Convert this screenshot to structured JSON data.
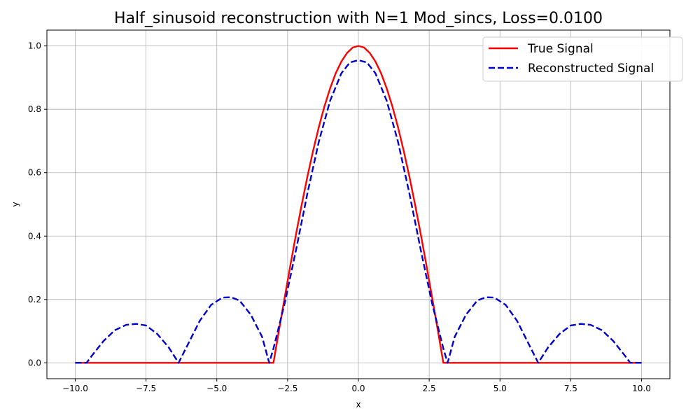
{
  "chart_data": {
    "type": "line",
    "title": "Half_sinusoid reconstruction with N=1 Mod_sincs, Loss=0.0100",
    "xlabel": "x",
    "ylabel": "y",
    "xlim": [
      -11,
      11
    ],
    "ylim": [
      -0.05,
      1.05
    ],
    "xticks": [
      -10,
      -7.5,
      -5,
      -2.5,
      0,
      2.5,
      5,
      7.5,
      10
    ],
    "xtick_labels": [
      "−10.0",
      "−7.5",
      "−5.0",
      "−2.5",
      "0.0",
      "2.5",
      "5.0",
      "7.5",
      "10.0"
    ],
    "yticks": [
      0,
      0.2,
      0.4,
      0.6,
      0.8,
      1.0
    ],
    "ytick_labels": [
      "0.0",
      "0.2",
      "0.4",
      "0.6",
      "0.8",
      "1.0"
    ],
    "grid": true,
    "legend_position": "top-right",
    "series": [
      {
        "name": "True Signal",
        "color": "#ff0000",
        "style": "solid",
        "x": [
          -10,
          -3.0,
          -2.8,
          -2.6,
          -2.4,
          -2.2,
          -2.0,
          -1.8,
          -1.6,
          -1.4,
          -1.2,
          -1.0,
          -0.8,
          -0.6,
          -0.4,
          -0.2,
          0.0,
          0.2,
          0.4,
          0.6,
          0.8,
          1.0,
          1.2,
          1.4,
          1.6,
          1.8,
          2.0,
          2.2,
          2.4,
          2.6,
          2.8,
          3.0,
          10
        ],
        "y": [
          0,
          0,
          0.105,
          0.208,
          0.309,
          0.407,
          0.5,
          0.588,
          0.669,
          0.743,
          0.809,
          0.866,
          0.914,
          0.951,
          0.978,
          0.995,
          1.0,
          0.995,
          0.978,
          0.951,
          0.914,
          0.866,
          0.809,
          0.743,
          0.669,
          0.588,
          0.5,
          0.407,
          0.309,
          0.208,
          0.105,
          0,
          0
        ]
      },
      {
        "name": "Reconstructed Signal",
        "color": "#0000cc",
        "style": "dashed",
        "x": [
          -10,
          -9.6,
          -9.4,
          -9.0,
          -8.6,
          -8.2,
          -7.85,
          -7.5,
          -7.1,
          -6.7,
          -6.35,
          -6.0,
          -5.6,
          -5.2,
          -4.8,
          -4.5,
          -4.2,
          -3.8,
          -3.4,
          -3.15,
          -3.0,
          -2.6,
          -2.2,
          -1.8,
          -1.4,
          -1.0,
          -0.6,
          -0.3,
          0.0,
          0.3,
          0.6,
          1.0,
          1.4,
          1.8,
          2.2,
          2.6,
          3.0,
          3.15,
          3.4,
          3.8,
          4.2,
          4.5,
          4.8,
          5.2,
          5.6,
          6.0,
          6.35,
          6.7,
          7.1,
          7.5,
          7.85,
          8.2,
          8.6,
          9.0,
          9.4,
          9.6,
          10
        ],
        "y": [
          0,
          0,
          0.024,
          0.069,
          0.103,
          0.12,
          0.123,
          0.118,
          0.091,
          0.049,
          0,
          0.062,
          0.133,
          0.183,
          0.206,
          0.207,
          0.197,
          0.152,
          0.082,
          0,
          0.045,
          0.189,
          0.357,
          0.535,
          0.697,
          0.827,
          0.914,
          0.948,
          0.955,
          0.948,
          0.914,
          0.827,
          0.697,
          0.535,
          0.357,
          0.189,
          0.045,
          0,
          0.082,
          0.152,
          0.197,
          0.207,
          0.206,
          0.183,
          0.133,
          0.062,
          0,
          0.049,
          0.091,
          0.118,
          0.123,
          0.12,
          0.103,
          0.069,
          0.024,
          0,
          0
        ]
      }
    ]
  }
}
